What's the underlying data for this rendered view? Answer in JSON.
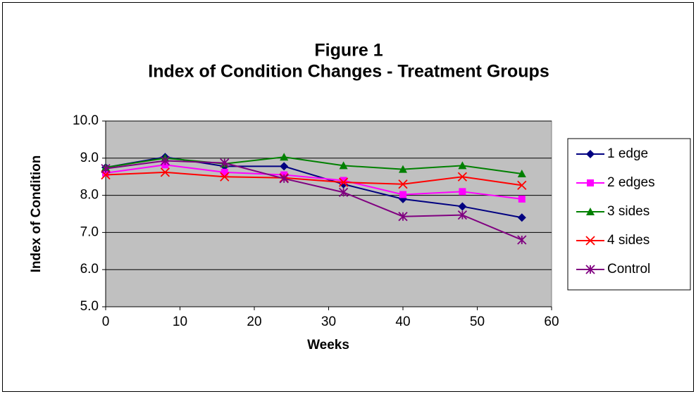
{
  "chart_data": {
    "type": "line",
    "title": "Figure 1",
    "subtitle": "Index of Condition Changes - Treatment Groups",
    "x_label": "Weeks",
    "y_label": "Index of Condition",
    "x": [
      0,
      8,
      16,
      24,
      32,
      40,
      48,
      56
    ],
    "series": [
      {
        "name": "1 edge",
        "color": "#000080",
        "marker": "diamond",
        "values": [
          8.75,
          9.03,
          8.78,
          8.78,
          8.3,
          7.9,
          7.7,
          7.4
        ]
      },
      {
        "name": "2 edges",
        "color": "#ff00ff",
        "marker": "square",
        "values": [
          8.6,
          8.82,
          8.62,
          8.55,
          8.4,
          8.02,
          8.1,
          7.9
        ]
      },
      {
        "name": "3 sides",
        "color": "#008000",
        "marker": "triangle",
        "values": [
          8.75,
          9.0,
          8.85,
          9.03,
          8.8,
          8.7,
          8.8,
          8.58
        ]
      },
      {
        "name": "4 sides",
        "color": "#ff0000",
        "marker": "x",
        "values": [
          8.55,
          8.62,
          8.5,
          8.47,
          8.35,
          8.3,
          8.5,
          8.27
        ]
      },
      {
        "name": "Control",
        "color": "#800080",
        "marker": "star",
        "values": [
          8.72,
          8.93,
          8.87,
          8.45,
          8.08,
          7.43,
          7.47,
          6.8
        ]
      }
    ],
    "xlim": [
      0,
      60
    ],
    "xticks": [
      0,
      10,
      20,
      30,
      40,
      50,
      60
    ],
    "ylim": [
      5,
      10
    ],
    "yticks": [
      {
        "value": 5,
        "label": "5.0"
      },
      {
        "value": 6,
        "label": "6.0"
      },
      {
        "value": 7,
        "label": "7.0"
      },
      {
        "value": 8,
        "label": "8.0"
      },
      {
        "value": 9,
        "label": "9.0"
      },
      {
        "value": 10,
        "label": "10.0"
      }
    ],
    "grid": true,
    "plot_background": "#c0c0c0",
    "legend": "right"
  }
}
